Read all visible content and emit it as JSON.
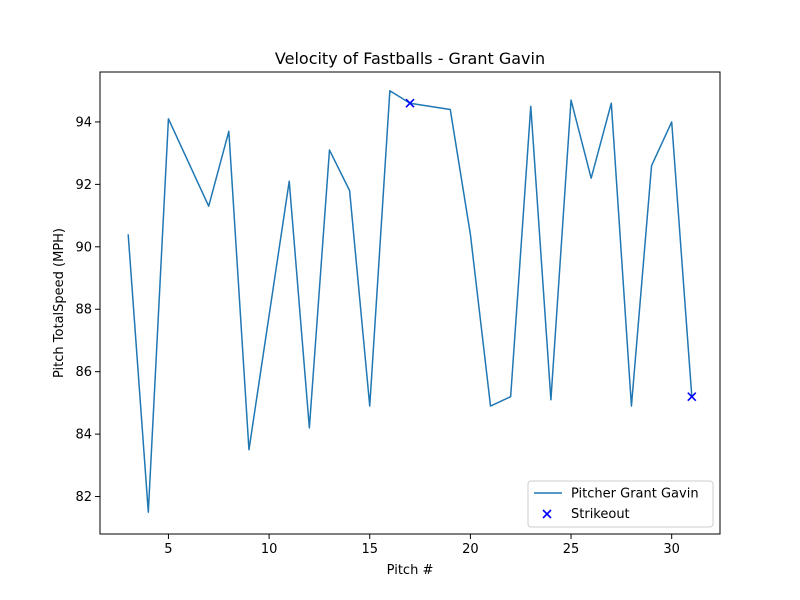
{
  "chart_data": {
    "type": "line",
    "title": "Velocity of Fastballs - Grant Gavin",
    "xlabel": "Pitch #",
    "ylabel": "Pitch TotalSpeed (MPH)",
    "xlim": [
      1.6,
      32.4
    ],
    "ylim": [
      80.8,
      95.6
    ],
    "x_ticks": [
      5,
      10,
      15,
      20,
      25,
      30
    ],
    "y_ticks": [
      82,
      84,
      86,
      88,
      90,
      92,
      94
    ],
    "grid": false,
    "legend_position": "lower-right",
    "series": [
      {
        "name": "Pitcher Grant Gavin",
        "kind": "line",
        "color": "#1f77b4",
        "x": [
          3,
          4,
          5,
          7,
          8,
          9,
          11,
          12,
          13,
          14,
          15,
          16,
          17,
          19,
          20,
          21,
          22,
          23,
          24,
          25,
          26,
          27,
          28,
          29,
          30,
          31
        ],
        "y": [
          90.4,
          81.5,
          94.1,
          91.3,
          93.7,
          83.5,
          92.1,
          84.2,
          93.1,
          91.8,
          84.9,
          95.0,
          94.6,
          94.4,
          90.4,
          84.9,
          85.2,
          94.5,
          85.1,
          94.7,
          92.2,
          94.6,
          84.9,
          92.6,
          94.0,
          85.2
        ]
      },
      {
        "name": "Strikeout",
        "kind": "scatter",
        "marker": "x",
        "color": "#0000ff",
        "x": [
          17,
          31
        ],
        "y": [
          94.6,
          85.2
        ]
      }
    ]
  }
}
